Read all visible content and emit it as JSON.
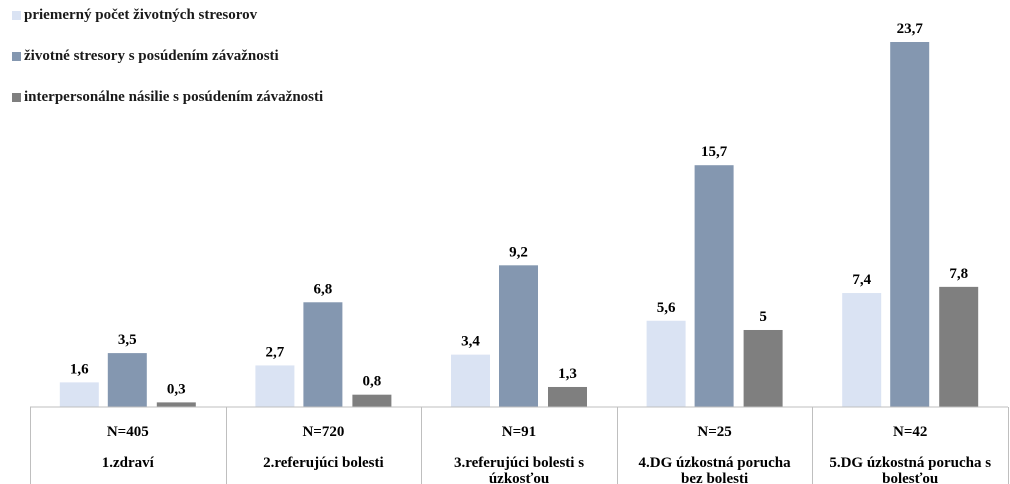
{
  "chart_data": {
    "type": "bar",
    "categories": [
      "1.zdraví",
      "2.referujúci  bolesti",
      "3.referujúci bolesti s úzkosťou",
      "4.DG úzkostná porucha bez bolesti",
      "5.DG úzkostná porucha s bolesťou"
    ],
    "category_lines": [
      [
        "1.zdraví"
      ],
      [
        "2.referujúci  bolesti"
      ],
      [
        "3.referujúci bolesti s",
        "úzkosťou"
      ],
      [
        "4.DG úzkostná porucha",
        "bez bolesti"
      ],
      [
        "5.DG úzkostná porucha s",
        "bolesťou"
      ]
    ],
    "n_labels": [
      "N=405",
      "N=720",
      "N=91",
      "N=25",
      "N=42"
    ],
    "series": [
      {
        "name": "priemerný počet životných stresorov",
        "color": "#dae3f3",
        "values": [
          1.6,
          2.7,
          3.4,
          5.6,
          7.4
        ],
        "labels": [
          "1,6",
          "2,7",
          "3,4",
          "5,6",
          "7,4"
        ]
      },
      {
        "name": "životné stresory s posúdením závažnosti",
        "color": "#8497b0",
        "values": [
          3.5,
          6.8,
          9.2,
          15.7,
          23.7
        ],
        "labels": [
          "3,5",
          "6,8",
          "9,2",
          "15,7",
          "23,7"
        ]
      },
      {
        "name": "interpersonálne násilie s posúdením závažnosti",
        "color": "#7f7f7f",
        "values": [
          0.3,
          0.8,
          1.3,
          5,
          7.8
        ],
        "labels": [
          "0,3",
          "0,8",
          "1,3",
          "5",
          "7,8"
        ]
      }
    ],
    "ylim": [
      0,
      23.7
    ],
    "legend_position": "top-left",
    "grid": false
  }
}
